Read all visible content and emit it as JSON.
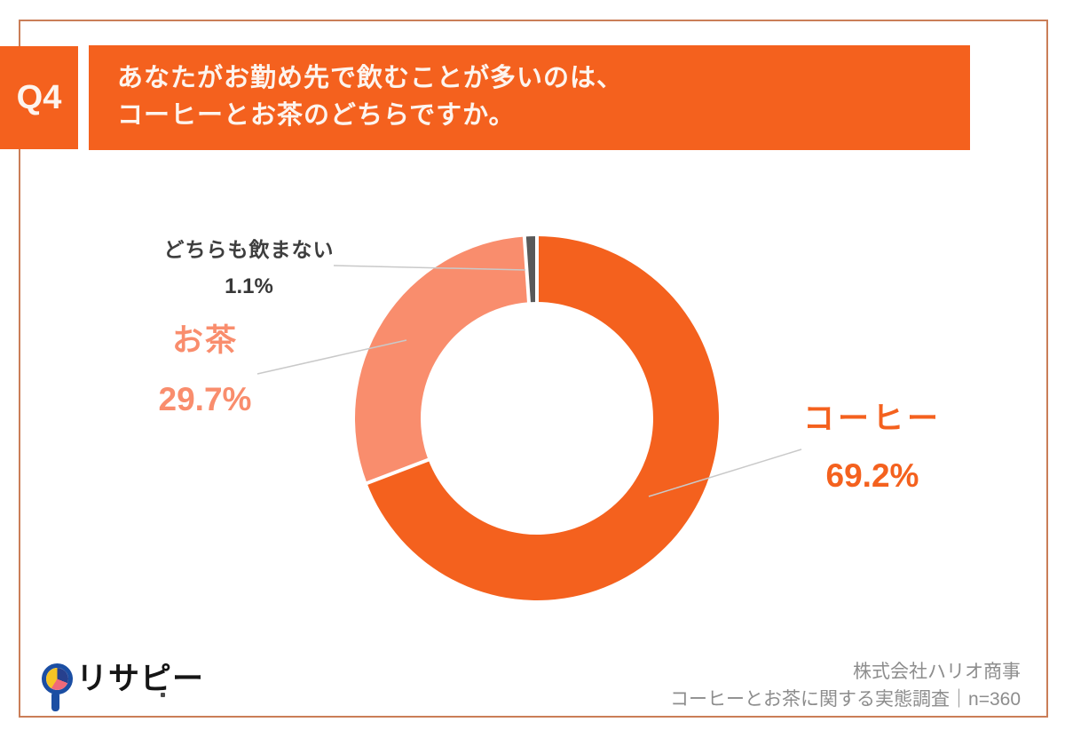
{
  "header": {
    "badge_label": "Q4",
    "title_line1": "あなたがお勤め先で飲むことが多いのは、",
    "title_line2": "コーヒーとお茶のどちらですか。"
  },
  "chart_data": {
    "type": "pie",
    "subtype": "donut",
    "title": "あなたがお勤め先で飲むことが多いのは、コーヒーとお茶のどちらですか。",
    "unit": "%",
    "sample_size": "n=360",
    "start_angle_deg": 0,
    "direction": "clockwise",
    "inner_radius_ratio": 0.64,
    "legend": "none",
    "label_style": "outside-callout",
    "segments": [
      {
        "label": "コーヒー",
        "value": 69.2,
        "display": "69.2%",
        "color": "#f4611e"
      },
      {
        "label": "お茶",
        "value": 29.7,
        "display": "29.7%",
        "color": "#f98d6d"
      },
      {
        "label": "どちらも飲まない",
        "value": 1.1,
        "display": "1.1%",
        "color": "#595959"
      }
    ]
  },
  "footer": {
    "logo_text": "リサピー",
    "credit_line1": "株式会社ハリオ商事",
    "credit_line2": "コーヒーとお茶に関する実態調査｜n=360"
  },
  "colors": {
    "accent_orange": "#f4611e",
    "accent_salmon": "#f98d6d",
    "neutral_dark": "#595959",
    "frame_border": "#ca7e58",
    "footer_text": "#8d8d8d",
    "leader_line": "#c9c9c9",
    "logo_blue": "#1b4ea3",
    "logo_navy": "#27408e",
    "logo_pink": "#ef6a79",
    "logo_yellow": "#f6c425"
  }
}
